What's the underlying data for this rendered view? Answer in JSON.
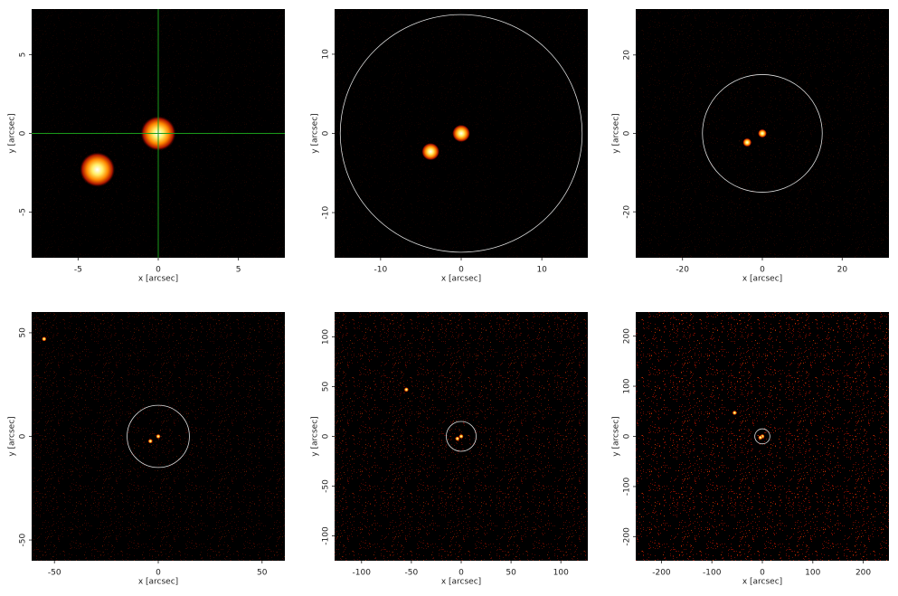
{
  "chart_data": [
    {
      "type": "image",
      "xlabel": "x [arcsec]",
      "ylabel": "y [arcsec]",
      "xlim": [
        -7.9,
        7.9
      ],
      "ylim": [
        -7.9,
        7.9
      ],
      "xticks": [
        -5,
        0,
        5
      ],
      "yticks": [
        -5,
        0,
        5
      ],
      "crosshair": {
        "x": 0,
        "y": 0
      },
      "sources": {
        "x": [
          0,
          -3.8
        ],
        "y": [
          0,
          -2.3
        ]
      },
      "background": 0.1
    },
    {
      "type": "image",
      "xlabel": "x [arcsec]",
      "ylabel": "y [arcsec]",
      "xlim": [
        -15.7,
        15.7
      ],
      "ylim": [
        -15.7,
        15.7
      ],
      "xticks": [
        -10,
        0,
        10
      ],
      "yticks": [
        -10,
        0,
        10
      ],
      "aperture_radius": 15,
      "sources": {
        "x": [
          0,
          -3.8
        ],
        "y": [
          0,
          -2.3
        ]
      },
      "background": 0.1
    },
    {
      "type": "image",
      "xlabel": "x [arcsec]",
      "ylabel": "y [arcsec]",
      "xlim": [
        -31.7,
        31.7
      ],
      "ylim": [
        -31.7,
        31.7
      ],
      "xticks": [
        -20,
        0,
        20
      ],
      "yticks": [
        -20,
        0,
        20
      ],
      "aperture_radius": 15,
      "sources": {
        "x": [
          0,
          -3.8
        ],
        "y": [
          0,
          -2.3
        ]
      },
      "background": 0.15
    },
    {
      "type": "image",
      "xlabel": "x [arcsec]",
      "ylabel": "y [arcsec]",
      "xlim": [
        -61,
        61
      ],
      "ylim": [
        -60,
        60
      ],
      "xticks": [
        -50,
        0,
        50
      ],
      "yticks": [
        -50,
        0,
        50
      ],
      "aperture_radius": 15,
      "sources": {
        "x": [
          0,
          -3.8,
          -55
        ],
        "y": [
          0,
          -2.3,
          47
        ]
      },
      "background": 0.35
    },
    {
      "type": "image",
      "xlabel": "x [arcsec]",
      "ylabel": "y [arcsec]",
      "xlim": [
        -127,
        127
      ],
      "ylim": [
        -125,
        125
      ],
      "xticks": [
        -100,
        -50,
        0,
        50,
        100
      ],
      "yticks": [
        -100,
        -50,
        0,
        50,
        100
      ],
      "aperture_radius": 15,
      "sources": {
        "x": [
          0,
          -3.8,
          -55
        ],
        "y": [
          0,
          -2.3,
          47
        ]
      },
      "background": 0.55
    },
    {
      "type": "image",
      "xlabel": "x [arcsec]",
      "ylabel": "y [arcsec]",
      "xlim": [
        -251,
        251
      ],
      "ylim": [
        -248,
        248
      ],
      "xticks": [
        -200,
        -100,
        0,
        100,
        200
      ],
      "yticks": [
        -200,
        -100,
        0,
        100,
        200
      ],
      "aperture_radius": 15,
      "sources": {
        "x": [
          0,
          -3.8,
          -55
        ],
        "y": [
          0,
          -2.3,
          47
        ]
      },
      "background": 0.8
    }
  ]
}
